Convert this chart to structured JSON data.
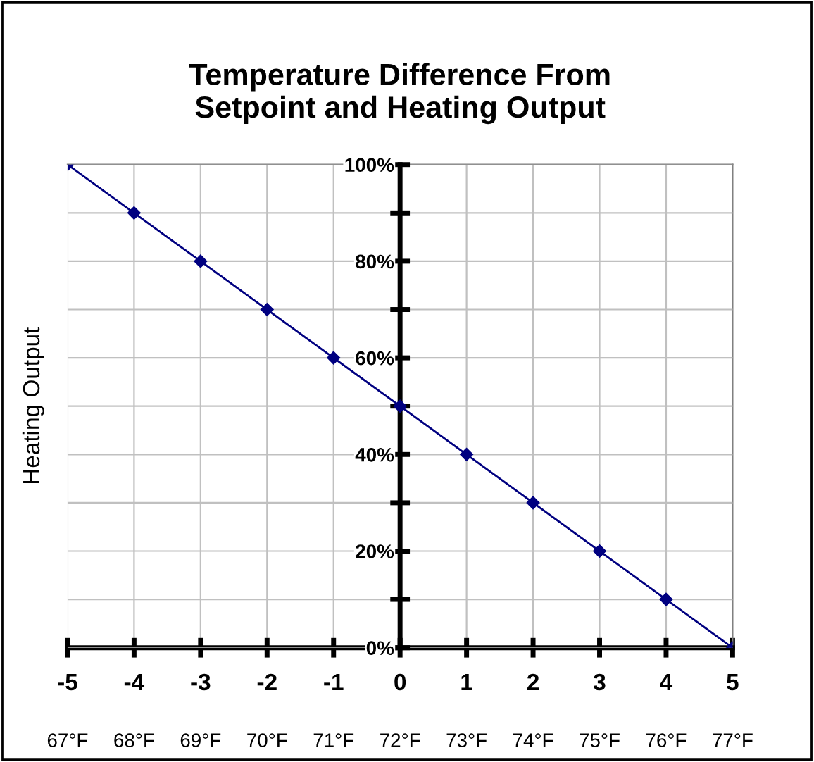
{
  "chart_data": {
    "type": "line",
    "title": "Temperature Difference From\nSetpoint and Heating Output",
    "ylabel": "Heating Output",
    "x": [
      -5,
      -4,
      -3,
      -2,
      -1,
      0,
      1,
      2,
      3,
      4,
      5
    ],
    "series": [
      {
        "color": "#000080",
        "values": [
          100,
          90,
          80,
          70,
          60,
          50,
          40,
          30,
          20,
          10,
          0
        ]
      }
    ],
    "xlim": [
      -5,
      5
    ],
    "xticks": [
      -5,
      -4,
      -3,
      -2,
      -1,
      0,
      1,
      2,
      3,
      4,
      5
    ],
    "ylim": [
      0,
      100
    ],
    "yticks": [
      {
        "value": 0,
        "label": "0%"
      },
      {
        "value": 10,
        "label": null
      },
      {
        "value": 20,
        "label": "20%"
      },
      {
        "value": 30,
        "label": null
      },
      {
        "value": 40,
        "label": "40%"
      },
      {
        "value": 50,
        "label": null
      },
      {
        "value": 60,
        "label": "60%"
      },
      {
        "value": 70,
        "label": null
      },
      {
        "value": 80,
        "label": "80%"
      },
      {
        "value": 90,
        "label": null
      },
      {
        "value": 100,
        "label": "100%"
      }
    ],
    "x2lim": [
      67,
      77
    ],
    "x2ticks": [
      {
        "value": 67,
        "label": "67°F"
      },
      {
        "value": 68,
        "label": "68°F"
      },
      {
        "value": 69,
        "label": "69°F"
      },
      {
        "value": 70,
        "label": "70°F"
      },
      {
        "value": 71,
        "label": "71°F"
      },
      {
        "value": 72,
        "label": "72°F"
      },
      {
        "value": 73,
        "label": "73°F"
      },
      {
        "value": 74,
        "label": "74°F"
      },
      {
        "value": 75,
        "label": "75°F"
      },
      {
        "value": 76,
        "label": "76°F"
      },
      {
        "value": 77,
        "label": "77°F"
      }
    ],
    "grid": true,
    "marker": "diamond",
    "line_style": "solid"
  }
}
